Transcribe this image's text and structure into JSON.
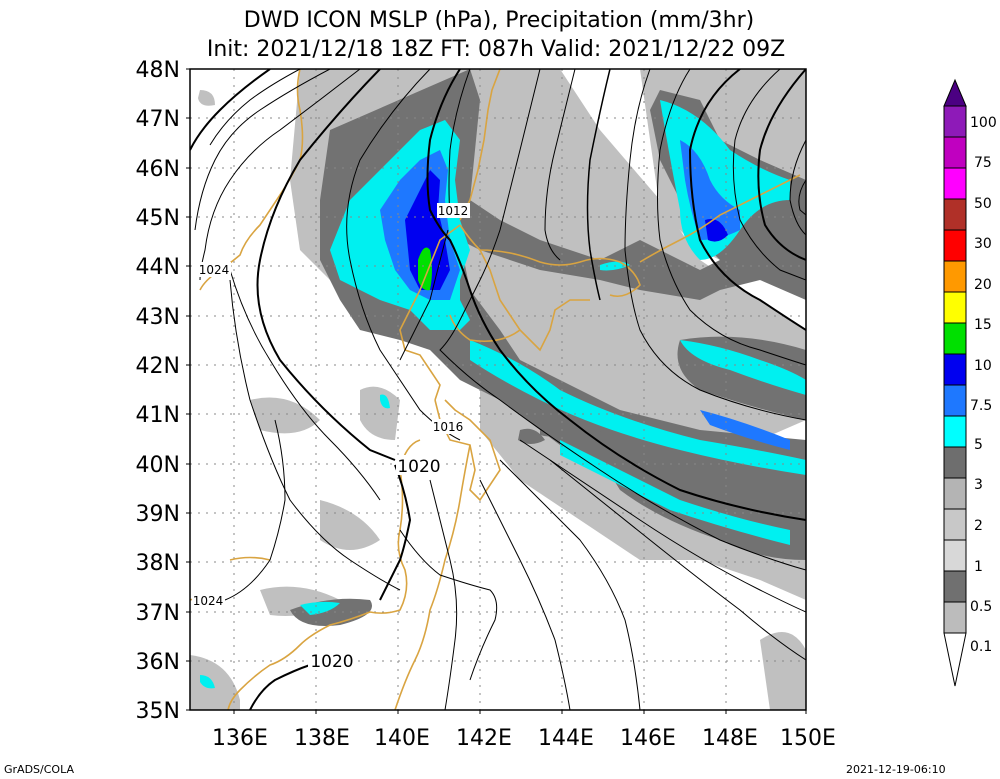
{
  "header": {
    "title_line1": "DWD ICON MSLP (hPa), Precipitation (mm/3hr)",
    "title_line2": "Init: 2021/12/18 18Z  FT: 087h  Valid: 2021/12/22 09Z"
  },
  "map": {
    "lat_labels": [
      "48N",
      "47N",
      "46N",
      "45N",
      "44N",
      "43N",
      "42N",
      "41N",
      "40N",
      "39N",
      "38N",
      "37N",
      "36N",
      "35N"
    ],
    "lon_labels": [
      "136E",
      "138E",
      "140E",
      "142E",
      "144E",
      "146E",
      "148E",
      "150E"
    ],
    "isobar_labels": [
      "1012",
      "1024",
      "1016",
      "1020",
      "1024",
      "1020"
    ],
    "colors": {
      "coast": "#d9a441",
      "isobar": "#000000",
      "grid": "#888888"
    }
  },
  "legend": {
    "labels": [
      "100",
      "75",
      "50",
      "30",
      "20",
      "15",
      "10",
      "7.5",
      "5",
      "3",
      "2",
      "1",
      "0.5",
      "0.1"
    ],
    "colors": [
      "#8e1ab8",
      "#c000c0",
      "#ff00ff",
      "#b03028",
      "#ff0000",
      "#ff9900",
      "#ffff00",
      "#00e000",
      "#0000f0",
      "#1e78ff",
      "#00ffff",
      "#6e6e6e",
      "#b4b4b4",
      "#ffffff"
    ],
    "top_color": "#4b0082"
  },
  "footer": {
    "left": "GrADS/COLA",
    "right": "2021-12-19-06:10"
  }
}
